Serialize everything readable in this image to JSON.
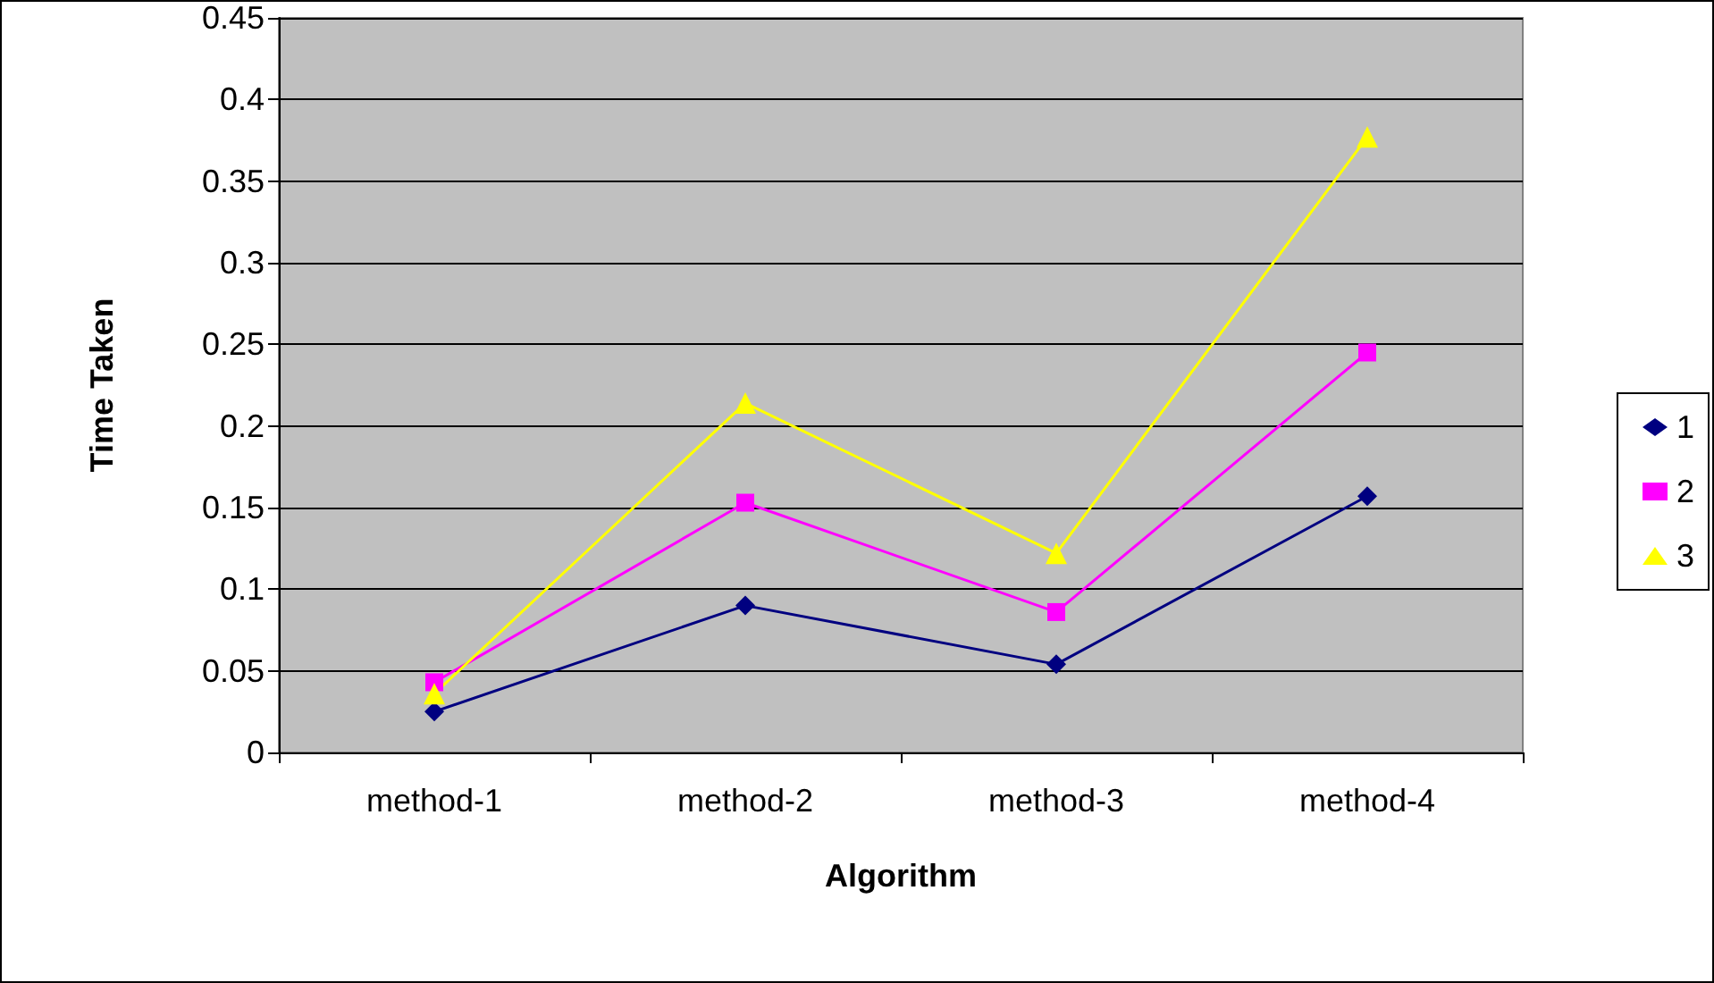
{
  "chart_data": {
    "type": "line",
    "xlabel": "Algorithm",
    "ylabel": "Time Taken",
    "categories": [
      "method-1",
      "method-2",
      "method-3",
      "method-4"
    ],
    "series": [
      {
        "name": "1",
        "color": "#000080",
        "marker": "diamond",
        "values": [
          0.025,
          0.09,
          0.054,
          0.157
        ]
      },
      {
        "name": "2",
        "color": "#ff00ff",
        "marker": "square",
        "values": [
          0.043,
          0.153,
          0.086,
          0.245
        ]
      },
      {
        "name": "3",
        "color": "#ffff00",
        "marker": "triangle",
        "values": [
          0.036,
          0.214,
          0.122,
          0.377
        ]
      }
    ],
    "ylim": [
      0,
      0.45
    ],
    "yticks": [
      0,
      0.05,
      0.1,
      0.15,
      0.2,
      0.25,
      0.3,
      0.35,
      0.4,
      0.45
    ],
    "grid": "y",
    "legend": "right"
  }
}
